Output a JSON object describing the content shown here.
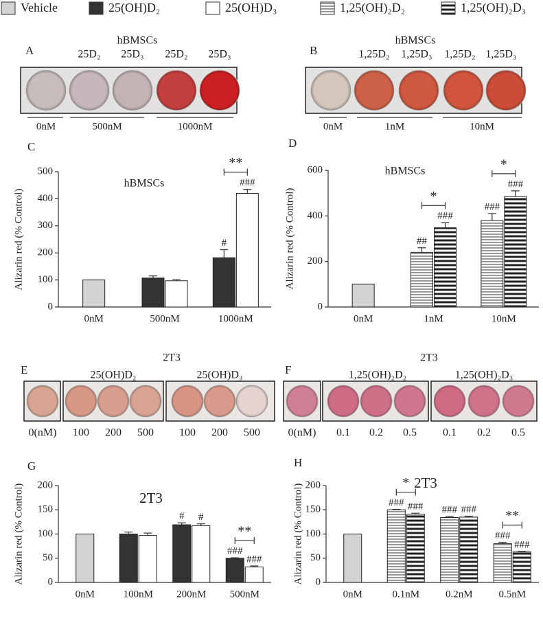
{
  "chart_data": [
    {
      "type": "bar",
      "panel": "C",
      "title": "hBMSCs",
      "ylabel": "Alizarin red (% Control)",
      "categories": [
        "0nM",
        "500nM",
        "1000nM"
      ],
      "ylim": [
        0,
        500
      ],
      "yticks": [
        0,
        100,
        200,
        300,
        400,
        500
      ],
      "series": [
        {
          "name": "Vehicle",
          "color": "#d3d3d3",
          "values": [
            100,
            null,
            null
          ]
        },
        {
          "name": "25(OH)D₂",
          "color": "#333333",
          "values": [
            null,
            107,
            182
          ],
          "errors": [
            null,
            8,
            30
          ],
          "marks": [
            null,
            null,
            "#"
          ]
        },
        {
          "name": "25(OH)D₃",
          "color": "#ffffff",
          "values": [
            null,
            97,
            420
          ],
          "errors": [
            null,
            4,
            15
          ],
          "marks": [
            null,
            null,
            "###"
          ]
        }
      ],
      "brackets": [
        {
          "category": 2,
          "label": "**"
        }
      ]
    },
    {
      "type": "bar",
      "panel": "D",
      "title": "hBMSCs",
      "ylabel": "Alizarin red (% Control)",
      "categories": [
        "0nM",
        "1nM",
        "10nM"
      ],
      "ylim": [
        0,
        600
      ],
      "yticks": [
        0,
        200,
        400,
        600
      ],
      "series": [
        {
          "color": "#d3d3d3",
          "values": [
            100,
            null,
            null
          ]
        },
        {
          "name": "1,25(OH)₂D₂",
          "color": "#ffffff",
          "hatch": "thin",
          "values": [
            null,
            240,
            380
          ],
          "errors": [
            null,
            20,
            30
          ],
          "marks": [
            null,
            "##",
            "###"
          ]
        },
        {
          "name": "1,25(OH)₂D₃",
          "color": "#ffffff",
          "hatch": "thick",
          "values": [
            null,
            348,
            485
          ],
          "errors": [
            null,
            22,
            25
          ],
          "marks": [
            null,
            "###",
            "###"
          ]
        }
      ],
      "brackets": [
        {
          "category": 1,
          "label": "*"
        },
        {
          "category": 2,
          "label": "*"
        }
      ]
    },
    {
      "type": "bar",
      "panel": "G",
      "title": "2T3",
      "ylabel": "Alizarin red (% Control)",
      "categories": [
        "0nM",
        "100nM",
        "200nM",
        "500nM"
      ],
      "ylim": [
        0,
        200
      ],
      "yticks": [
        0,
        50,
        100,
        150,
        200
      ],
      "series": [
        {
          "color": "#d3d3d3",
          "values": [
            100,
            null,
            null,
            null
          ]
        },
        {
          "color": "#333333",
          "values": [
            null,
            100,
            119,
            50
          ],
          "errors": [
            null,
            4,
            4,
            1
          ],
          "marks": [
            null,
            null,
            "#",
            "###"
          ]
        },
        {
          "color": "#ffffff",
          "values": [
            null,
            97,
            117,
            32
          ],
          "errors": [
            null,
            5,
            4,
            2
          ],
          "marks": [
            null,
            null,
            "#",
            "###"
          ]
        }
      ],
      "brackets": [
        {
          "category": 3,
          "label": "**"
        }
      ]
    },
    {
      "type": "bar",
      "panel": "H",
      "title": "2T3",
      "ylabel": "Alizarin red (% Control)",
      "categories": [
        "0nM",
        "0.1nM",
        "0.2nM",
        "0.5nM"
      ],
      "ylim": [
        0,
        200
      ],
      "yticks": [
        0,
        50,
        100,
        150,
        200
      ],
      "series": [
        {
          "color": "#d3d3d3",
          "values": [
            100,
            null,
            null,
            null
          ]
        },
        {
          "color": "#ffffff",
          "hatch": "thin",
          "values": [
            null,
            150,
            134,
            80
          ],
          "errors": [
            null,
            1,
            2,
            3
          ],
          "marks": [
            null,
            "###",
            "###",
            "###"
          ]
        },
        {
          "color": "#ffffff",
          "hatch": "thick",
          "values": [
            null,
            141,
            135,
            63
          ],
          "errors": [
            null,
            2,
            2,
            1
          ],
          "marks": [
            null,
            "###",
            "###",
            "###"
          ]
        }
      ],
      "brackets": [
        {
          "category": 1,
          "label": "*"
        },
        {
          "category": 3,
          "label": "**"
        }
      ]
    }
  ],
  "photos": [
    {
      "panel": "A",
      "title": "hBMSCs",
      "columns": [
        "25D₂",
        "25D₃",
        "25D₂",
        "25D₃"
      ],
      "groups": [
        "0nM",
        "500nM",
        "1000nM"
      ]
    },
    {
      "panel": "B",
      "title": "hBMSCs",
      "columns": [
        "1,25D₂",
        "1,25D₃",
        "1,25D₂",
        "1,25D₃"
      ],
      "groups": [
        "0nM",
        "1nM",
        "10nM"
      ]
    },
    {
      "panel": "E",
      "title": "2T3",
      "columns": [
        "25(OH)D₂",
        "25(OH)D₃"
      ],
      "labels": [
        "0(nM)",
        "100",
        "200",
        "500",
        "100",
        "200",
        "500"
      ]
    },
    {
      "panel": "F",
      "title": "2T3",
      "columns": [
        "1,25(OH)₂D₂",
        "1,25(OH)₂D₃"
      ],
      "labels": [
        "0(nM)",
        "0.1",
        "0.2",
        "0.5",
        "0.1",
        "0.2",
        "0.5"
      ]
    }
  ]
}
